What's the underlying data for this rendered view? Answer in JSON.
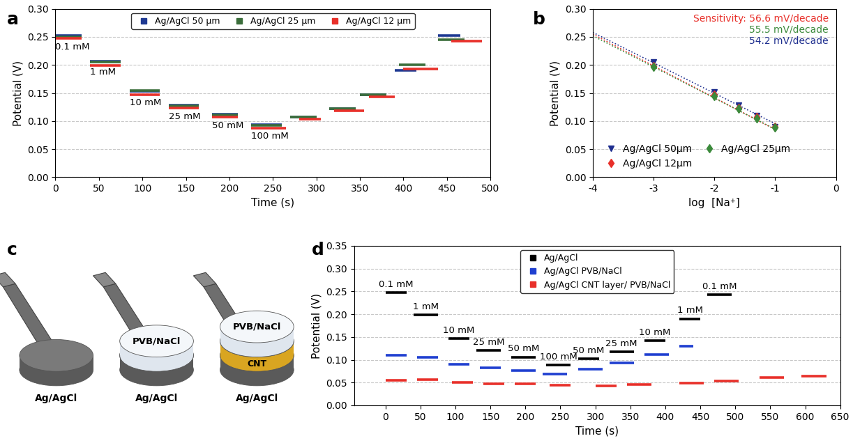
{
  "chart_data": [
    {
      "type": "step",
      "title": "a",
      "x_label": "Time (s)",
      "y_label": "Potential (V)",
      "xlim": [
        0,
        500
      ],
      "xticks": [
        0,
        50,
        100,
        150,
        200,
        250,
        300,
        350,
        400,
        450,
        500
      ],
      "ylim": [
        0,
        0.3
      ],
      "yticks": [
        {
          "value": 0,
          "label": "0.00"
        },
        {
          "value": 0.05,
          "label": "0.05"
        },
        {
          "value": 0.1,
          "label": "0.10"
        },
        {
          "value": 0.15,
          "label": "0.15"
        },
        {
          "value": 0.2,
          "label": "0.20"
        },
        {
          "value": 0.25,
          "label": "0.25"
        },
        {
          "value": 0.3,
          "label": "0.30"
        }
      ],
      "grid": "y",
      "legend": "upper center",
      "series": [
        {
          "name": "Ag/AgCl 50 µm",
          "color": "#1f3a93",
          "x": [
            0,
            30,
            null,
            40,
            75,
            null,
            85,
            120,
            null,
            130,
            165,
            null,
            180,
            210,
            null,
            225,
            260,
            null,
            270,
            300,
            null,
            315,
            345,
            null,
            350,
            380,
            null,
            390,
            415,
            null,
            440,
            465
          ],
          "values": [
            0.252,
            0.252,
            null,
            0.207,
            0.207,
            null,
            0.153,
            0.153,
            null,
            0.128,
            0.128,
            null,
            0.112,
            0.112,
            null,
            0.093,
            0.093,
            null,
            0.107,
            0.107,
            null,
            0.122,
            0.122,
            null,
            0.147,
            0.147,
            null,
            0.19,
            0.19,
            null,
            0.252,
            0.252
          ],
          "annotations": [
            "0.1 mM",
            "1 mM",
            "10 mM",
            "25 mM",
            "50 mM",
            "100 mM",
            null,
            null,
            null,
            null,
            null
          ]
        },
        {
          "name": "Ag/AgCl 25 µm",
          "color": "#3b6e3b",
          "x": [
            0,
            30,
            null,
            40,
            75,
            null,
            85,
            120,
            null,
            130,
            165,
            null,
            180,
            210,
            null,
            225,
            260,
            null,
            270,
            300,
            null,
            315,
            345,
            null,
            350,
            380,
            null,
            395,
            425,
            null,
            440,
            470
          ],
          "values": [
            0.25,
            0.25,
            null,
            0.205,
            0.205,
            null,
            0.155,
            0.155,
            null,
            0.127,
            0.127,
            null,
            0.111,
            0.111,
            null,
            0.092,
            0.092,
            null,
            0.107,
            0.107,
            null,
            0.122,
            0.122,
            null,
            0.147,
            0.147,
            null,
            0.2,
            0.2,
            null,
            0.245,
            0.245
          ]
        },
        {
          "name": "Ag/AgCl 12 µm",
          "color": "#e8302a",
          "x": [
            0,
            30,
            null,
            40,
            75,
            null,
            85,
            120,
            null,
            130,
            165,
            null,
            180,
            210,
            null,
            225,
            265,
            null,
            280,
            305,
            null,
            320,
            355,
            null,
            360,
            390,
            null,
            400,
            440,
            null,
            455,
            490
          ],
          "values": [
            0.247,
            0.247,
            null,
            0.199,
            0.199,
            null,
            0.147,
            0.147,
            null,
            0.123,
            0.123,
            null,
            0.107,
            0.107,
            null,
            0.088,
            0.088,
            null,
            0.103,
            0.103,
            null,
            0.118,
            0.118,
            null,
            0.143,
            0.143,
            null,
            0.193,
            0.193,
            null,
            0.243,
            0.243
          ]
        }
      ]
    },
    {
      "type": "scatter",
      "title": "b",
      "x_label": "log  [Na⁺]",
      "y_label": "Potential (V)",
      "xlim": [
        -4,
        0
      ],
      "xticks": [
        -4,
        -3,
        -2,
        -1,
        0
      ],
      "ylim": [
        0,
        0.3
      ],
      "yticks": [
        {
          "value": 0,
          "label": "0.00"
        },
        {
          "value": 0.05,
          "label": "0.05"
        },
        {
          "value": 0.1,
          "label": "0.10"
        },
        {
          "value": 0.15,
          "label": "0.15"
        },
        {
          "value": 0.2,
          "label": "0.20"
        },
        {
          "value": 0.25,
          "label": "0.25"
        },
        {
          "value": 0.3,
          "label": "0.30"
        }
      ],
      "grid": "y",
      "legend": "lower left",
      "annotations": [
        {
          "text": "Sensitivity: 56.6 mV/decade",
          "color": "#e8302a"
        },
        {
          "text": "55.5 mV/decade",
          "color": "#3b8a3b"
        },
        {
          "text": "54.2 mV/decade",
          "color": "#1f2f8f"
        }
      ],
      "series": [
        {
          "name": "Ag/AgCl 50µm",
          "color": "#1f2f8f",
          "marker": "triangle_down",
          "x": [
            -3,
            -2,
            -1.6,
            -1.3,
            -1
          ],
          "values": [
            0.205,
            0.152,
            0.128,
            0.11,
            0.09
          ],
          "fit": {
            "x": [
              -4,
              -1
            ],
            "values": [
              0.258,
              0.0954
            ],
            "line_style": "dotted"
          }
        },
        {
          "name": "Ag/AgCl 12µm",
          "color": "#e8302a",
          "marker": "diamond",
          "x": [
            -3,
            -2,
            -1.6,
            -1.3,
            -1
          ],
          "values": [
            0.198,
            0.147,
            0.123,
            0.107,
            0.09
          ],
          "fit": {
            "x": [
              -4,
              -1
            ],
            "values": [
              0.255,
              0.085
            ],
            "line_style": "dotted"
          }
        },
        {
          "name": "Ag/AgCl 25µm",
          "color": "#3b8a3b",
          "marker": "diamond",
          "x": [
            -3,
            -2,
            -1.6,
            -1.3,
            -1
          ],
          "values": [
            0.197,
            0.145,
            0.122,
            0.105,
            0.089
          ],
          "fit": {
            "x": [
              -4,
              -1
            ],
            "values": [
              0.252,
              0.0855
            ],
            "line_style": "dotted"
          }
        }
      ]
    },
    {
      "type": "step",
      "title": "d",
      "x_label": "Time (s)",
      "y_label": "Potential (V)",
      "xlim": [
        -45,
        650
      ],
      "xticks": [
        0,
        50,
        100,
        150,
        200,
        250,
        300,
        350,
        400,
        450,
        500,
        550,
        600,
        650
      ],
      "ylim": [
        0,
        0.35
      ],
      "yticks": [
        {
          "value": 0,
          "label": "0.00"
        },
        {
          "value": 0.05,
          "label": "0.05"
        },
        {
          "value": 0.1,
          "label": "0.10"
        },
        {
          "value": 0.15,
          "label": "0.15"
        },
        {
          "value": 0.2,
          "label": "0.20"
        },
        {
          "value": 0.25,
          "label": "0.25"
        },
        {
          "value": 0.3,
          "label": "0.30"
        },
        {
          "value": 0.35,
          "label": "0.35"
        }
      ],
      "grid": "y",
      "legend": "upper center",
      "series": [
        {
          "name": "Ag/AgCl",
          "color": "#000000",
          "x": [
            0,
            30,
            null,
            40,
            75,
            null,
            90,
            120,
            null,
            130,
            165,
            null,
            180,
            215,
            null,
            230,
            265,
            null,
            275,
            305,
            null,
            320,
            355,
            null,
            370,
            400,
            null,
            420,
            450,
            null,
            460,
            495
          ],
          "values": [
            0.247,
            0.247,
            null,
            0.198,
            0.198,
            null,
            0.147,
            0.147,
            null,
            0.121,
            0.121,
            null,
            0.106,
            0.106,
            null,
            0.088,
            0.088,
            null,
            0.102,
            0.102,
            null,
            0.117,
            0.117,
            null,
            0.142,
            0.142,
            null,
            0.19,
            0.19,
            null,
            0.243,
            0.243
          ],
          "annotations": [
            "0.1 mM",
            "1 mM",
            "10 mM",
            "25 mM",
            "50 mM",
            "100 mM",
            "50 mM",
            "25 mM",
            "10 mM",
            "1 mM",
            "0.1 mM"
          ]
        },
        {
          "name": "Ag/AgCl PVB/NaCl",
          "color": "#1f3fd0",
          "x": [
            0,
            30,
            null,
            45,
            75,
            null,
            90,
            120,
            null,
            135,
            165,
            null,
            180,
            215,
            null,
            225,
            260,
            null,
            275,
            310,
            null,
            320,
            355,
            null,
            370,
            405,
            null,
            420,
            440
          ],
          "values": [
            0.11,
            0.11,
            null,
            0.106,
            0.106,
            null,
            0.09,
            0.09,
            null,
            0.083,
            0.083,
            null,
            0.076,
            0.076,
            null,
            0.069,
            0.069,
            null,
            0.08,
            0.08,
            null,
            0.093,
            0.093,
            null,
            0.112,
            0.112,
            null,
            0.13,
            0.13
          ]
        },
        {
          "name": "Ag/AgCl CNT layer/ PVB/NaCl",
          "color": "#e8302a",
          "x": [
            0,
            30,
            null,
            45,
            75,
            null,
            95,
            125,
            null,
            140,
            170,
            null,
            185,
            215,
            null,
            235,
            265,
            null,
            300,
            330,
            null,
            345,
            380,
            null,
            420,
            455,
            null,
            470,
            505,
            null,
            535,
            570,
            null,
            595,
            630
          ],
          "values": [
            0.055,
            0.055,
            null,
            0.056,
            0.056,
            null,
            0.05,
            0.05,
            null,
            0.048,
            0.048,
            null,
            0.047,
            0.047,
            null,
            0.045,
            0.045,
            null,
            0.043,
            0.043,
            null,
            0.046,
            0.046,
            null,
            0.049,
            0.049,
            null,
            0.054,
            0.054,
            null,
            0.061,
            0.061,
            null,
            0.064,
            0.064
          ]
        }
      ]
    }
  ],
  "diagram": {
    "title": "c",
    "electrodes": [
      {
        "layers": [
          "Ag/AgCl"
        ]
      },
      {
        "layers": [
          "Ag/AgCl",
          "PVB/NaCl"
        ]
      },
      {
        "layers": [
          "Ag/AgCl",
          "CNT",
          "PVB/NaCl"
        ]
      }
    ]
  }
}
